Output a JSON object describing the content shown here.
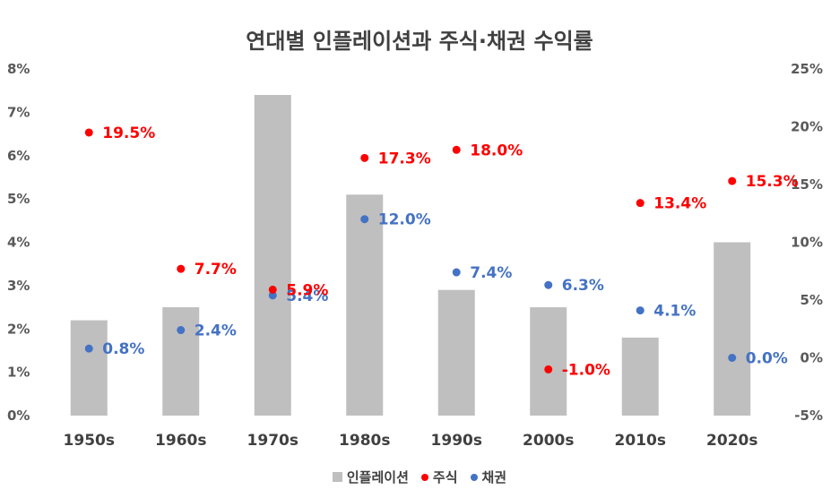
{
  "chart_data": {
    "type": "bar",
    "title": "연대별 인플레이션과 주식·채권 수익률",
    "categories": [
      "1950s",
      "1960s",
      "1970s",
      "1980s",
      "1990s",
      "2000s",
      "2010s",
      "2020s"
    ],
    "series": [
      {
        "name": "인플레이션",
        "type": "bar",
        "axis": "left",
        "color": "#bfbfbf",
        "values": [
          2.2,
          2.5,
          7.4,
          5.1,
          2.9,
          2.5,
          1.8,
          4.0
        ]
      },
      {
        "name": "주식",
        "type": "scatter",
        "axis": "right",
        "color": "#ff0000",
        "values": [
          19.5,
          7.7,
          5.9,
          17.3,
          18.0,
          -1.0,
          13.4,
          15.3
        ],
        "labels": [
          "19.5%",
          "7.7%",
          "5.9%",
          "17.3%",
          "18.0%",
          "-1.0%",
          "13.4%",
          "15.3%"
        ]
      },
      {
        "name": "채권",
        "type": "scatter",
        "axis": "right",
        "color": "#4472c4",
        "values": [
          0.8,
          2.4,
          5.4,
          12.0,
          7.4,
          6.3,
          4.1,
          0.0
        ],
        "labels": [
          "0.8%",
          "2.4%",
          "5.4%",
          "12.0%",
          "7.4%",
          "6.3%",
          "4.1%",
          "0.0%"
        ]
      }
    ],
    "y_left": {
      "min": 0,
      "max": 8,
      "step": 1,
      "ticks": [
        "0%",
        "1%",
        "2%",
        "3%",
        "4%",
        "5%",
        "6%",
        "7%",
        "8%"
      ]
    },
    "y_right": {
      "min": -5,
      "max": 25,
      "step": 5,
      "ticks": [
        "-5%",
        "0%",
        "5%",
        "10%",
        "15%",
        "20%",
        "25%"
      ]
    },
    "grid": false,
    "legend_position": "bottom"
  }
}
